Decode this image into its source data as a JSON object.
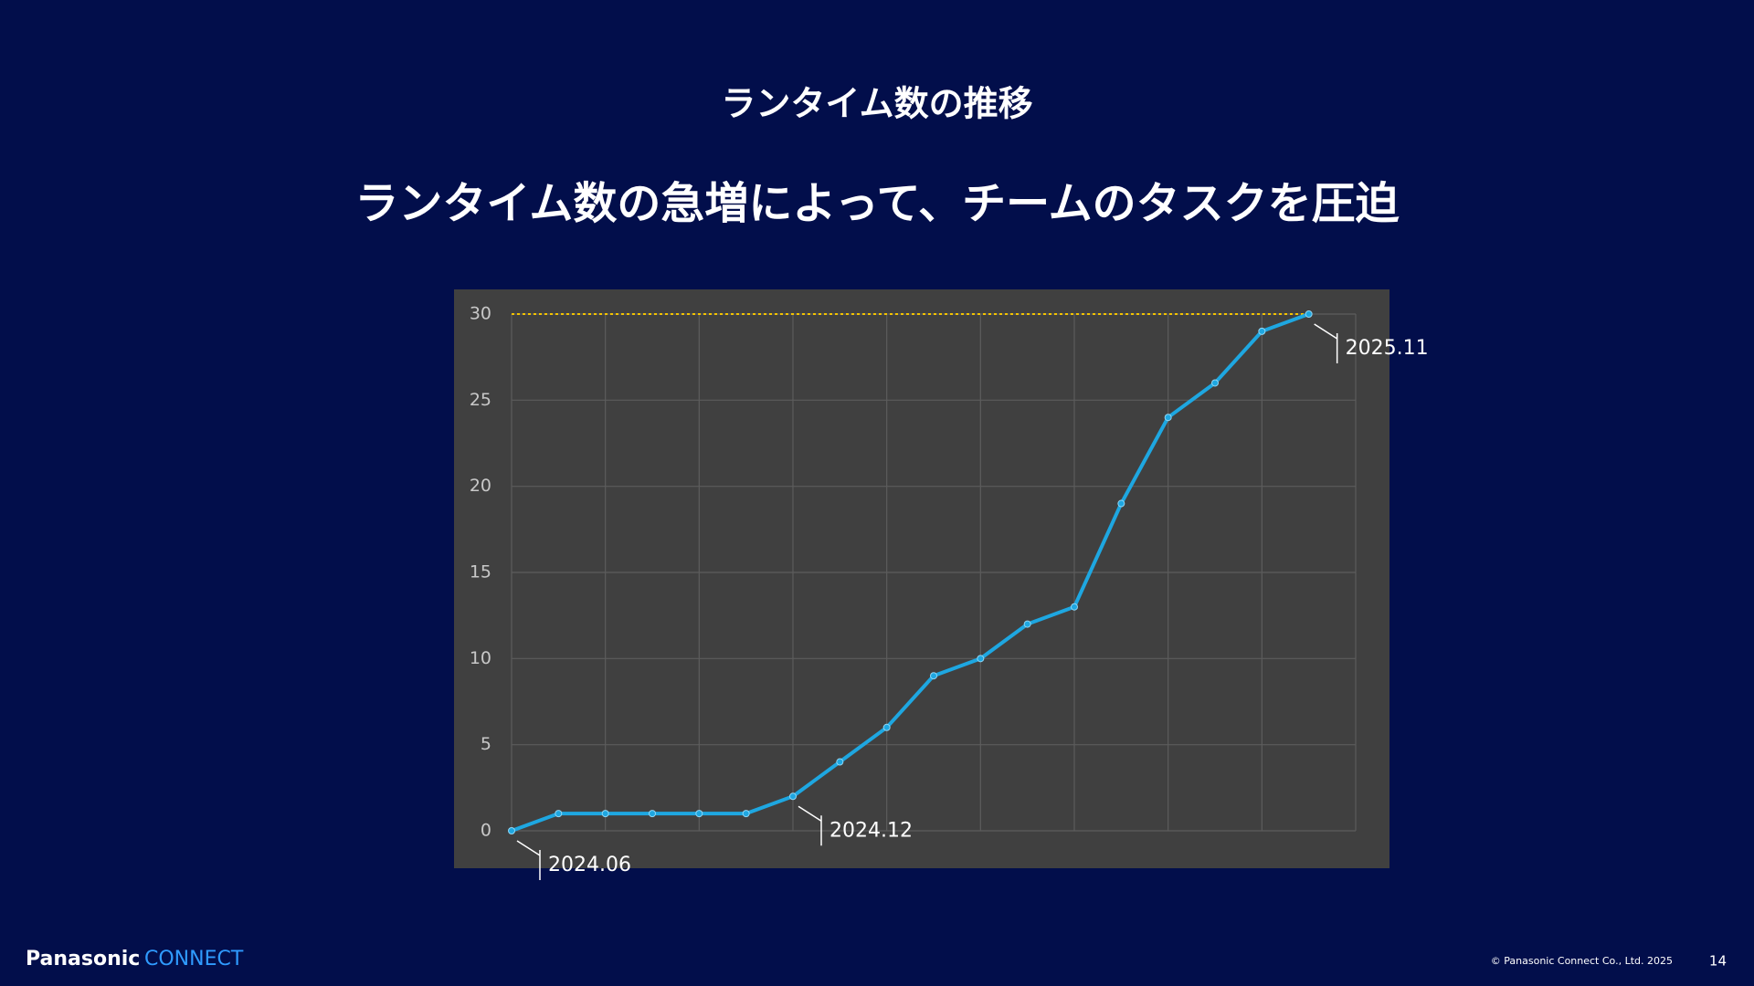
{
  "chart_data": {
    "type": "line",
    "header": "ランタイム数の推移",
    "title": "ランタイム数の急増によって、チームのタスクを圧迫",
    "categories": [
      "2024.06",
      null,
      null,
      null,
      null,
      null,
      "2024.12",
      null,
      null,
      null,
      null,
      null,
      null,
      null,
      null,
      null,
      null,
      "2025.11"
    ],
    "series": [
      {
        "color": "#1ea7e1",
        "values": [
          0,
          1,
          1,
          1,
          1,
          1,
          2,
          4,
          6,
          9,
          10,
          12,
          13,
          19,
          24,
          26,
          29,
          30
        ]
      }
    ],
    "ylim": [
      0,
      30
    ],
    "yticks": [
      0,
      5,
      10,
      15,
      20,
      25,
      30
    ],
    "grid": true,
    "threshold": {
      "value": 30,
      "color": "#f2c200"
    }
  },
  "footer": {
    "brand": "Panasonic",
    "brand_accent": "CONNECT",
    "copyright": "© Panasonic Connect Co., Ltd. 2025",
    "page": "14"
  }
}
